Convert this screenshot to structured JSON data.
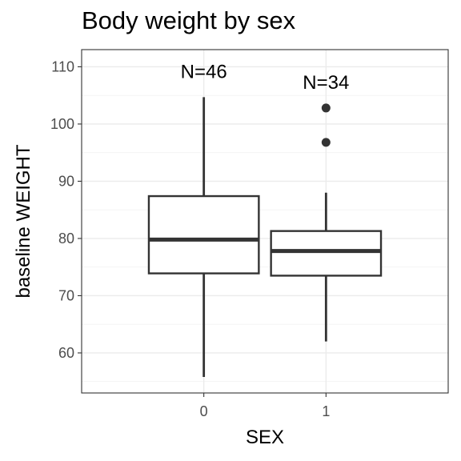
{
  "chart_data": {
    "type": "box",
    "title": "Body weight by sex",
    "xlabel": "SEX",
    "ylabel": "baseline WEIGHT",
    "categories": [
      "0",
      "1"
    ],
    "ylim": [
      53,
      113
    ],
    "yticks": [
      60,
      70,
      80,
      90,
      100,
      110
    ],
    "grid": true,
    "boxes": [
      {
        "category": "0",
        "whisker_low": 55.8,
        "q1": 73.9,
        "median": 79.8,
        "q3": 87.4,
        "whisker_high": 104.7,
        "outliers": [],
        "n_label": "N=46"
      },
      {
        "category": "1",
        "whisker_low": 62.0,
        "q1": 73.5,
        "median": 77.8,
        "q3": 81.3,
        "whisker_high": 88.0,
        "outliers": [
          96.8,
          102.8
        ],
        "n_label": "N=34"
      }
    ]
  }
}
